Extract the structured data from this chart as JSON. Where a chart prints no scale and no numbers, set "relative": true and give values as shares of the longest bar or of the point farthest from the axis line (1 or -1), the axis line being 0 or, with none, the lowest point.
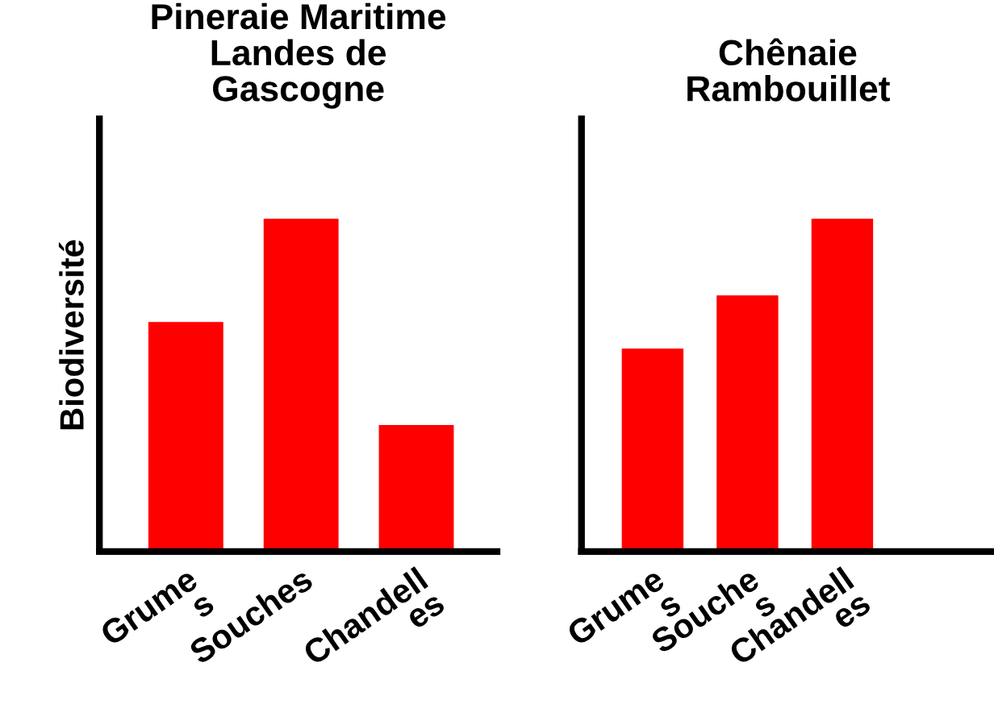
{
  "chart_data": [
    {
      "type": "bar",
      "title": "Pineraie Maritime\nLandes de\nGascogne",
      "ylabel": "Biodiversité",
      "relative": true,
      "categories": [
        "Grume\ns",
        "Souches",
        "Chandell\nes"
      ],
      "values": [
        0.69,
        1,
        0.38
      ],
      "color": "#ff0000"
    },
    {
      "type": "bar",
      "title": "Chênaie\nRambouillet",
      "relative": true,
      "categories": [
        "Grume\ns",
        "Souche\ns",
        "Chandell\nes"
      ],
      "values": [
        0.61,
        0.77,
        1
      ],
      "color": "#ff0000"
    }
  ]
}
